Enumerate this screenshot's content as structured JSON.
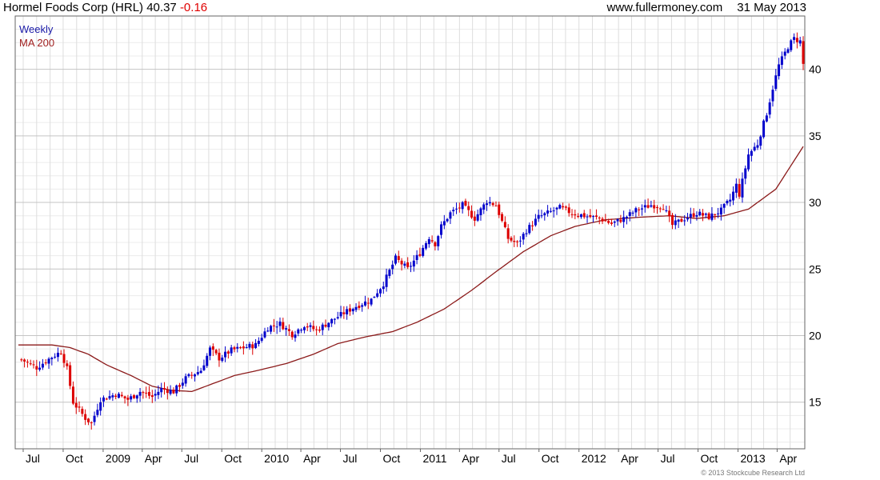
{
  "header": {
    "company": "Hormel Foods Corp (HRL)",
    "last_price": "40.37",
    "change": "-0.16",
    "website": "www.fullermoney.com",
    "date": "31 May 2013"
  },
  "footer": {
    "credit": "© 2013 Stockcube Research Ltd"
  },
  "colors": {
    "up": "#0000cc",
    "down": "#dd0000",
    "ma": "#8b1a1a",
    "grid": "#dddddd"
  },
  "chart_data": {
    "type": "candlestick",
    "x_axis": {
      "start": "2008-06-20",
      "end": "2013-05-31",
      "ticks": [
        {
          "date": "2008-07-01",
          "label": "Jul"
        },
        {
          "date": "2008-10-01",
          "label": "Oct"
        },
        {
          "date": "2009-01-01",
          "label": "2009"
        },
        {
          "date": "2009-04-01",
          "label": "Apr"
        },
        {
          "date": "2009-07-01",
          "label": "Jul"
        },
        {
          "date": "2009-10-01",
          "label": "Oct"
        },
        {
          "date": "2010-01-01",
          "label": "2010"
        },
        {
          "date": "2010-04-01",
          "label": "Apr"
        },
        {
          "date": "2010-07-01",
          "label": "Jul"
        },
        {
          "date": "2010-10-01",
          "label": "Oct"
        },
        {
          "date": "2011-01-01",
          "label": "2011"
        },
        {
          "date": "2011-04-01",
          "label": "Apr"
        },
        {
          "date": "2011-07-01",
          "label": "Jul"
        },
        {
          "date": "2011-10-01",
          "label": "Oct"
        },
        {
          "date": "2012-01-01",
          "label": "2012"
        },
        {
          "date": "2012-04-01",
          "label": "Apr"
        },
        {
          "date": "2012-07-01",
          "label": "Jul"
        },
        {
          "date": "2012-10-01",
          "label": "Oct"
        },
        {
          "date": "2013-01-01",
          "label": "2013"
        },
        {
          "date": "2013-04-01",
          "label": "Apr"
        }
      ]
    },
    "y_axis": {
      "min": 11.5,
      "max": 44,
      "ticks": [
        15,
        20,
        25,
        30,
        35,
        40
      ],
      "position": "right"
    },
    "grid": true,
    "legend": {
      "position": "top-left",
      "entries": [
        "Weekly",
        "MA 200"
      ]
    },
    "series": [
      {
        "name": "Weekly",
        "kind": "weekly-close",
        "dates": [
          "2008-06-27",
          "2008-08-01",
          "2008-09-05",
          "2008-09-26",
          "2008-10-10",
          "2008-10-24",
          "2008-11-21",
          "2008-12-05",
          "2008-12-26",
          "2009-01-30",
          "2009-02-27",
          "2009-03-27",
          "2009-04-24",
          "2009-05-15",
          "2009-06-12",
          "2009-07-10",
          "2009-08-14",
          "2009-09-04",
          "2009-09-25",
          "2009-10-23",
          "2009-11-20",
          "2009-12-18",
          "2010-01-15",
          "2010-02-12",
          "2010-03-12",
          "2010-04-09",
          "2010-05-07",
          "2010-06-04",
          "2010-07-09",
          "2010-08-06",
          "2010-09-10",
          "2010-10-08",
          "2010-11-05",
          "2010-12-03",
          "2010-12-31",
          "2011-01-21",
          "2011-02-04",
          "2011-02-18",
          "2011-03-11",
          "2011-04-08",
          "2011-05-06",
          "2011-06-03",
          "2011-06-24",
          "2011-07-22",
          "2011-08-12",
          "2011-09-02",
          "2011-09-30",
          "2011-10-28",
          "2011-11-18",
          "2011-12-16",
          "2012-01-13",
          "2012-02-17",
          "2012-03-16",
          "2012-04-13",
          "2012-05-11",
          "2012-06-15",
          "2012-07-13",
          "2012-08-03",
          "2012-08-31",
          "2012-09-28",
          "2012-10-26",
          "2012-11-23",
          "2012-12-14",
          "2012-12-28",
          "2013-01-04",
          "2013-01-25",
          "2013-02-15",
          "2013-03-08",
          "2013-03-22",
          "2013-04-05",
          "2013-04-26",
          "2013-05-10",
          "2013-05-24",
          "2013-05-31"
        ],
        "values": [
          18.2,
          17.6,
          18.4,
          18.8,
          17.5,
          15.0,
          13.8,
          13.4,
          15.2,
          15.6,
          15.2,
          15.8,
          15.4,
          16.0,
          15.8,
          16.8,
          17.4,
          19.0,
          18.3,
          18.9,
          19.1,
          19.3,
          20.6,
          20.9,
          20.1,
          20.8,
          20.4,
          21.0,
          21.7,
          22.2,
          22.7,
          23.9,
          25.8,
          25.0,
          26.2,
          27.4,
          26.9,
          28.2,
          29.2,
          29.8,
          28.8,
          30.1,
          29.8,
          27.3,
          26.9,
          27.9,
          28.9,
          29.3,
          29.6,
          29.2,
          29.0,
          28.8,
          28.4,
          28.8,
          29.4,
          29.8,
          29.7,
          28.3,
          28.8,
          29.2,
          28.9,
          29.4,
          30.2,
          31.3,
          30.6,
          33.6,
          34.4,
          36.7,
          38.6,
          40.3,
          41.7,
          42.3,
          42.1,
          40.37
        ]
      },
      {
        "name": "MA 200",
        "kind": "moving-average",
        "dates": [
          "2008-06-20",
          "2008-09-05",
          "2008-10-17",
          "2008-11-28",
          "2009-01-09",
          "2009-03-06",
          "2009-04-24",
          "2009-06-05",
          "2009-07-24",
          "2009-09-11",
          "2009-10-30",
          "2009-12-25",
          "2010-02-26",
          "2010-04-30",
          "2010-06-25",
          "2010-08-27",
          "2010-10-29",
          "2010-12-24",
          "2011-02-25",
          "2011-04-29",
          "2011-06-24",
          "2011-08-26",
          "2011-10-28",
          "2011-12-23",
          "2012-03-02",
          "2012-05-25",
          "2012-07-27",
          "2012-09-28",
          "2012-11-30",
          "2013-01-25",
          "2013-03-29",
          "2013-05-31"
        ],
        "values": [
          19.3,
          19.3,
          19.1,
          18.6,
          17.8,
          17.0,
          16.2,
          15.9,
          15.8,
          16.4,
          17.0,
          17.4,
          17.9,
          18.6,
          19.4,
          19.9,
          20.3,
          21.0,
          22.0,
          23.4,
          24.8,
          26.3,
          27.5,
          28.2,
          28.7,
          28.9,
          29.0,
          28.8,
          29.0,
          29.5,
          31.0,
          34.2
        ]
      }
    ]
  }
}
